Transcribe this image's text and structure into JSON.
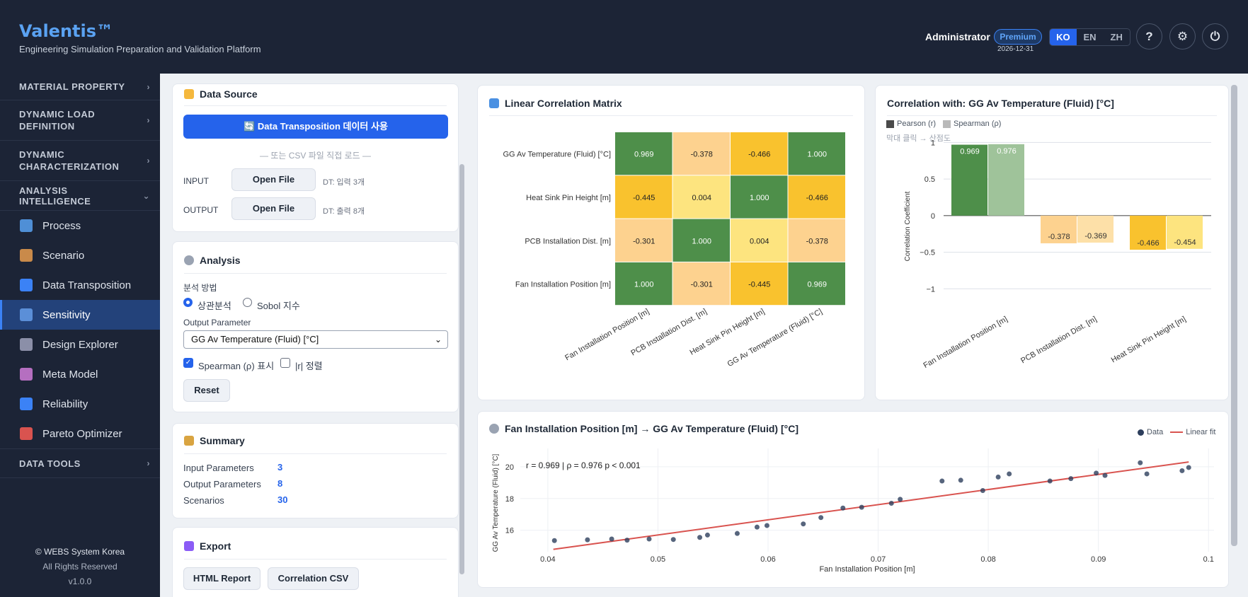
{
  "header": {
    "brand": "Valentis™",
    "subtitle": "Engineering Simulation Preparation and Validation Platform",
    "user": "Administrator",
    "badge": "Premium",
    "expiry": "2026-12-31",
    "langs": [
      "KO",
      "EN",
      "ZH"
    ],
    "active_lang": "KO",
    "help": "?",
    "settings": "⚙",
    "power": "⏻"
  },
  "sidebar": {
    "sections": {
      "material": "MATERIAL PROPERTY",
      "dynload_1": "DYNAMIC LOAD",
      "dynload_2": "DEFINITION",
      "dynchar_1": "DYNAMIC",
      "dynchar_2": "CHARACTERIZATION",
      "analysis": "ANALYSIS INTELLIGENCE",
      "datatools": "DATA TOOLS"
    },
    "items": [
      {
        "label": "Process",
        "icon": "book-icon",
        "color": "#4f8fd6"
      },
      {
        "label": "Scenario",
        "icon": "clipboard-icon",
        "color": "#c98a4a"
      },
      {
        "label": "Data Transposition",
        "icon": "transpose-icon",
        "color": "#3b82f6"
      },
      {
        "label": "Sensitivity",
        "icon": "trend-chart-icon",
        "color": "#5b8fd8"
      },
      {
        "label": "Design Explorer",
        "icon": "microscope-icon",
        "color": "#8b8fa8"
      },
      {
        "label": "Meta Model",
        "icon": "robot-icon",
        "color": "#b56fc0"
      },
      {
        "label": "Reliability",
        "icon": "shield-icon",
        "color": "#3b82f6"
      },
      {
        "label": "Pareto Optimizer",
        "icon": "target-icon",
        "color": "#d9534f"
      }
    ],
    "active": "Sensitivity",
    "footer": {
      "copyright": "© WEBS System Korea",
      "rights": "All Rights Reserved",
      "version": "v1.0.0"
    }
  },
  "data_source": {
    "title": "Data Source",
    "use_button": "🔄 Data Transposition 데이터 사용",
    "or_text": "— 또는 CSV 파일 직접 로드 —",
    "input_label": "INPUT",
    "input_button": "Open File",
    "input_status": "DT: 입력 3개",
    "output_label": "OUTPUT",
    "output_button": "Open File",
    "output_status": "DT: 출력 8개"
  },
  "analysis": {
    "title": "Analysis",
    "method_label": "분석 방법",
    "method_corr": "상관분석",
    "method_sobol": "Sobol 지수",
    "output_param_label": "Output Parameter",
    "output_param_value": "GG Av Temperature (Fluid) [°C]",
    "spearman_label": "Spearman (ρ) 표시",
    "sort_label": "|r| 정렬",
    "reset": "Reset"
  },
  "summary": {
    "title": "Summary",
    "rows": [
      {
        "label": "Input Parameters",
        "value": "3"
      },
      {
        "label": "Output Parameters",
        "value": "8"
      },
      {
        "label": "Scenarios",
        "value": "30"
      }
    ]
  },
  "export": {
    "title": "Export",
    "html_button": "HTML Report",
    "csv_button": "Correlation CSV"
  },
  "matrix": {
    "title": "Linear Correlation Matrix",
    "rows": [
      "GG Av Temperature (Fluid) [°C]",
      "Heat Sink Pin Height [m]",
      "PCB Installation Dist. [m]",
      "Fan Installation Position [m]"
    ],
    "cols": [
      "Fan Installation Position [m]",
      "PCB Installation Dist. [m]",
      "Heat Sink Pin Height [m]",
      "GG Av Temperature (Fluid) [°C]"
    ],
    "values": [
      [
        "0.969",
        "-0.378",
        "-0.466",
        "1.000"
      ],
      [
        "-0.445",
        "0.004",
        "1.000",
        "-0.466"
      ],
      [
        "-0.301",
        "1.000",
        "0.004",
        "-0.378"
      ],
      [
        "1.000",
        "-0.301",
        "-0.445",
        "0.969"
      ]
    ]
  },
  "corrbar": {
    "title": "Correlation with: GG Av Temperature (Fluid) [°C]",
    "legend_pearson": "Pearson (r)",
    "legend_spearman": "Spearman (ρ)",
    "hint": "막대 클릭 → 산점도",
    "ylabel": "Correlation Coefficient",
    "chart_data": {
      "type": "bar",
      "categories": [
        "Fan Installation Position [m]",
        "PCB Installation Dist. [m]",
        "Heat Sink Pin Height [m]"
      ],
      "series": [
        {
          "name": "Pearson (r)",
          "values": [
            0.969,
            -0.378,
            -0.466
          ],
          "labels": [
            "0.969",
            "-0.378",
            "-0.466"
          ]
        },
        {
          "name": "Spearman (ρ)",
          "values": [
            0.976,
            -0.369,
            -0.454
          ],
          "labels": [
            "0.976",
            "-0.369",
            "-0.454"
          ]
        }
      ],
      "ylim": [
        -1.2,
        1.1
      ],
      "yticks": [
        1,
        0.5,
        0,
        -0.5,
        -1
      ],
      "ytick_labels": [
        "1",
        "0.5",
        "0",
        "−0.5",
        "−1"
      ]
    }
  },
  "scatter": {
    "title": "Fan Installation Position [m] → GG Av Temperature (Fluid) [°C]",
    "legend_data": "Data",
    "legend_fit": "Linear fit",
    "stats": "r = 0.969  |  ρ = 0.976  p < 0.001",
    "chart_data": {
      "type": "scatter",
      "xlabel": "Fan Installation Position [m]",
      "ylabel": "GG Av Temperature (Fluid) [°C]",
      "xlim": [
        0.0375,
        0.1005
      ],
      "ylim": [
        14.65,
        21.15
      ],
      "xticks": [
        0.04,
        0.05,
        0.06,
        0.07,
        0.08,
        0.09,
        0.1
      ],
      "xtick_labels": [
        "0.04",
        "0.05",
        "0.06",
        "0.07",
        "0.08",
        "0.09",
        "0.1"
      ],
      "yticks": [
        16,
        18,
        20
      ],
      "ytick_labels": [
        "16",
        "18",
        "20"
      ],
      "points": [
        [
          0.0406,
          15.35
        ],
        [
          0.0436,
          15.4
        ],
        [
          0.0458,
          15.45
        ],
        [
          0.0472,
          15.38
        ],
        [
          0.0492,
          15.45
        ],
        [
          0.0514,
          15.42
        ],
        [
          0.0538,
          15.55
        ],
        [
          0.0545,
          15.7
        ],
        [
          0.0572,
          15.8
        ],
        [
          0.059,
          16.2
        ],
        [
          0.0599,
          16.3
        ],
        [
          0.0632,
          16.4
        ],
        [
          0.0648,
          16.8
        ],
        [
          0.0668,
          17.4
        ],
        [
          0.0685,
          17.45
        ],
        [
          0.0712,
          17.7
        ],
        [
          0.072,
          17.95
        ],
        [
          0.0758,
          19.1
        ],
        [
          0.0775,
          19.15
        ],
        [
          0.0795,
          18.5
        ],
        [
          0.0809,
          19.35
        ],
        [
          0.0819,
          19.55
        ],
        [
          0.0856,
          19.1
        ],
        [
          0.0875,
          19.25
        ],
        [
          0.0898,
          19.6
        ],
        [
          0.0906,
          19.45
        ],
        [
          0.0938,
          20.25
        ],
        [
          0.0944,
          19.55
        ],
        [
          0.0976,
          19.75
        ],
        [
          0.0982,
          19.95
        ]
      ],
      "fit": [
        [
          0.0405,
          14.8
        ],
        [
          0.0982,
          20.3
        ]
      ]
    }
  }
}
